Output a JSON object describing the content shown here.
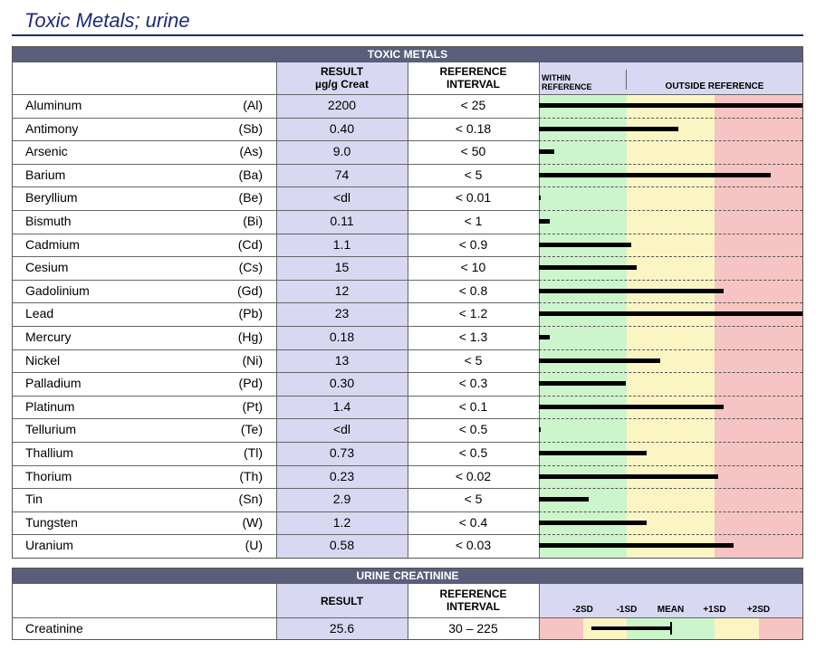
{
  "page_title": "Toxic Metals; urine",
  "toxic": {
    "section_title": "TOXIC METALS",
    "col_result": [
      "RESULT",
      "µg/g Creat"
    ],
    "col_reference": [
      "REFERENCE",
      "INTERVAL"
    ],
    "col_within": [
      "WITHIN",
      "REFERENCE"
    ],
    "col_outside": "OUTSIDE REFERENCE",
    "zone_colors": {
      "within": "#ccf5cc",
      "mild": "#fbf5c4",
      "high": "#f7c4c4"
    },
    "rows": [
      {
        "name": "Aluminum",
        "symbol": "(Al)",
        "result": "2200",
        "reference": "< 25",
        "level": 1.0
      },
      {
        "name": "Antimony",
        "symbol": "(Sb)",
        "result": "0.40",
        "reference": "< 0.18",
        "level": 0.53
      },
      {
        "name": "Arsenic",
        "symbol": "(As)",
        "result": "9.0",
        "reference": "< 50",
        "level": 0.06
      },
      {
        "name": "Barium",
        "symbol": "(Ba)",
        "result": "74",
        "reference": "< 5",
        "level": 0.88
      },
      {
        "name": "Beryllium",
        "symbol": "(Be)",
        "result": "<dl",
        "reference": "< 0.01",
        "level": 0.0
      },
      {
        "name": "Bismuth",
        "symbol": "(Bi)",
        "result": "0.11",
        "reference": "< 1",
        "level": 0.04
      },
      {
        "name": "Cadmium",
        "symbol": "(Cd)",
        "result": "1.1",
        "reference": "< 0.9",
        "level": 0.35
      },
      {
        "name": "Cesium",
        "symbol": "(Cs)",
        "result": "15",
        "reference": "< 10",
        "level": 0.37
      },
      {
        "name": "Gadolinium",
        "symbol": "(Gd)",
        "result": "12",
        "reference": "< 0.8",
        "level": 0.7
      },
      {
        "name": "Lead",
        "symbol": "(Pb)",
        "result": "23",
        "reference": "< 1.2",
        "level": 1.0
      },
      {
        "name": "Mercury",
        "symbol": "(Hg)",
        "result": "0.18",
        "reference": "< 1.3",
        "level": 0.04
      },
      {
        "name": "Nickel",
        "symbol": "(Ni)",
        "result": "13",
        "reference": "< 5",
        "level": 0.46
      },
      {
        "name": "Palladium",
        "symbol": "(Pd)",
        "result": "0.30",
        "reference": "< 0.3",
        "level": 0.33
      },
      {
        "name": "Platinum",
        "symbol": "(Pt)",
        "result": "1.4",
        "reference": "< 0.1",
        "level": 0.7
      },
      {
        "name": "Tellurium",
        "symbol": "(Te)",
        "result": "<dl",
        "reference": "< 0.5",
        "level": 0.0
      },
      {
        "name": "Thallium",
        "symbol": "(Tl)",
        "result": "0.73",
        "reference": "< 0.5",
        "level": 0.41
      },
      {
        "name": "Thorium",
        "symbol": "(Th)",
        "result": "0.23",
        "reference": "< 0.02",
        "level": 0.68
      },
      {
        "name": "Tin",
        "symbol": "(Sn)",
        "result": "2.9",
        "reference": "< 5",
        "level": 0.19
      },
      {
        "name": "Tungsten",
        "symbol": "(W)",
        "result": "1.2",
        "reference": "< 0.4",
        "level": 0.41
      },
      {
        "name": "Uranium",
        "symbol": "(U)",
        "result": "0.58",
        "reference": "< 0.03",
        "level": 0.74
      }
    ]
  },
  "creatinine": {
    "section_title": "URINE CREATININE",
    "col_result": "RESULT",
    "col_reference": [
      "REFERENCE",
      "INTERVAL"
    ],
    "scale_labels": [
      "-2SD",
      "-1SD",
      "MEAN",
      "+1SD",
      "+2SD"
    ],
    "zone_colors": {
      "outer": "#f7c4c4",
      "mid": "#fbf5c4",
      "center": "#ccf5cc"
    },
    "row": {
      "name": "Creatinine",
      "result": "25.6",
      "reference": "30 – 225",
      "range_from": -1.8,
      "range_to": 0.0
    }
  }
}
